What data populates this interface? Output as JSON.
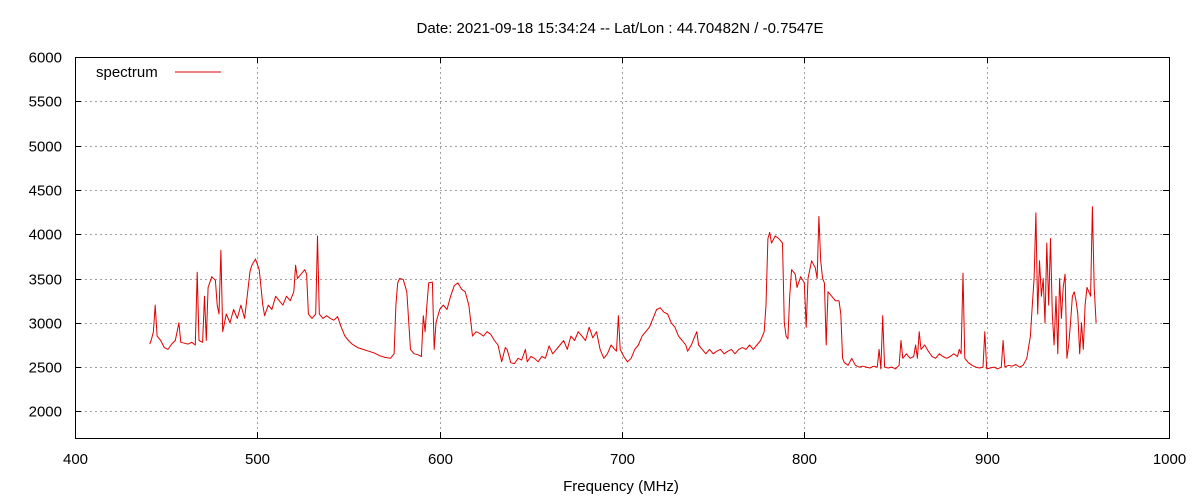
{
  "chart_data": {
    "type": "line",
    "title": "Date: 2021-09-18 15:34:24  --  Lat/Lon : 44.70482N / -0.7547E",
    "xlabel": "Frequency (MHz)",
    "ylabel": "",
    "xlim": [
      400,
      1000
    ],
    "ylim": [
      1700,
      6000
    ],
    "x_ticks": [
      400,
      500,
      600,
      700,
      800,
      900,
      1000
    ],
    "y_ticks": [
      2000,
      2500,
      3000,
      3500,
      4000,
      4500,
      5000,
      5500,
      6000
    ],
    "grid": true,
    "legend_position": "top-left",
    "series": [
      {
        "name": "spectrum",
        "color": "#e00000",
        "points": [
          [
            441,
            2760
          ],
          [
            442,
            2820
          ],
          [
            443,
            2900
          ],
          [
            444,
            3200
          ],
          [
            445,
            2850
          ],
          [
            447,
            2800
          ],
          [
            449,
            2720
          ],
          [
            451,
            2700
          ],
          [
            453,
            2760
          ],
          [
            455,
            2800
          ],
          [
            457,
            3000
          ],
          [
            458,
            2780
          ],
          [
            460,
            2770
          ],
          [
            462,
            2760
          ],
          [
            464,
            2780
          ],
          [
            466,
            2750
          ],
          [
            467,
            3570
          ],
          [
            468,
            2800
          ],
          [
            470,
            2780
          ],
          [
            471,
            3300
          ],
          [
            472,
            2800
          ],
          [
            473,
            3400
          ],
          [
            475,
            3520
          ],
          [
            477,
            3480
          ],
          [
            478,
            3200
          ],
          [
            479,
            3100
          ],
          [
            480,
            3820
          ],
          [
            481,
            2900
          ],
          [
            483,
            3100
          ],
          [
            485,
            3000
          ],
          [
            487,
            3150
          ],
          [
            489,
            3050
          ],
          [
            491,
            3200
          ],
          [
            493,
            3050
          ],
          [
            495,
            3400
          ],
          [
            496,
            3580
          ],
          [
            497,
            3650
          ],
          [
            499,
            3720
          ],
          [
            501,
            3600
          ],
          [
            503,
            3200
          ],
          [
            504,
            3080
          ],
          [
            506,
            3200
          ],
          [
            508,
            3150
          ],
          [
            510,
            3300
          ],
          [
            512,
            3250
          ],
          [
            514,
            3200
          ],
          [
            516,
            3300
          ],
          [
            518,
            3250
          ],
          [
            520,
            3350
          ],
          [
            521,
            3650
          ],
          [
            522,
            3500
          ],
          [
            524,
            3550
          ],
          [
            526,
            3600
          ],
          [
            527,
            3550
          ],
          [
            528,
            3100
          ],
          [
            530,
            3050
          ],
          [
            532,
            3100
          ],
          [
            533,
            3980
          ],
          [
            534,
            3100
          ],
          [
            536,
            3050
          ],
          [
            538,
            3080
          ],
          [
            540,
            3050
          ],
          [
            542,
            3030
          ],
          [
            544,
            3070
          ],
          [
            546,
            2950
          ],
          [
            548,
            2850
          ],
          [
            550,
            2800
          ],
          [
            552,
            2760
          ],
          [
            555,
            2720
          ],
          [
            558,
            2700
          ],
          [
            561,
            2680
          ],
          [
            564,
            2660
          ],
          [
            567,
            2630
          ],
          [
            570,
            2610
          ],
          [
            573,
            2600
          ],
          [
            575,
            2650
          ],
          [
            576,
            3200
          ],
          [
            577,
            3450
          ],
          [
            578,
            3500
          ],
          [
            580,
            3490
          ],
          [
            582,
            3350
          ],
          [
            584,
            2700
          ],
          [
            586,
            2650
          ],
          [
            588,
            2640
          ],
          [
            590,
            2620
          ],
          [
            591,
            3080
          ],
          [
            592,
            2900
          ],
          [
            593,
            3200
          ],
          [
            594,
            3450
          ],
          [
            596,
            3460
          ],
          [
            597,
            2700
          ],
          [
            598,
            3000
          ],
          [
            600,
            3150
          ],
          [
            602,
            3200
          ],
          [
            604,
            3150
          ],
          [
            606,
            3300
          ],
          [
            608,
            3420
          ],
          [
            610,
            3450
          ],
          [
            612,
            3380
          ],
          [
            614,
            3350
          ],
          [
            616,
            3200
          ],
          [
            617,
            3020
          ],
          [
            618,
            2850
          ],
          [
            620,
            2900
          ],
          [
            622,
            2880
          ],
          [
            624,
            2850
          ],
          [
            626,
            2900
          ],
          [
            628,
            2870
          ],
          [
            630,
            2800
          ],
          [
            632,
            2750
          ],
          [
            634,
            2560
          ],
          [
            636,
            2720
          ],
          [
            637,
            2700
          ],
          [
            639,
            2550
          ],
          [
            641,
            2540
          ],
          [
            643,
            2600
          ],
          [
            645,
            2580
          ],
          [
            647,
            2700
          ],
          [
            648,
            2560
          ],
          [
            650,
            2620
          ],
          [
            652,
            2600
          ],
          [
            654,
            2560
          ],
          [
            656,
            2620
          ],
          [
            658,
            2600
          ],
          [
            660,
            2740
          ],
          [
            662,
            2650
          ],
          [
            664,
            2700
          ],
          [
            666,
            2750
          ],
          [
            668,
            2800
          ],
          [
            670,
            2700
          ],
          [
            672,
            2850
          ],
          [
            674,
            2800
          ],
          [
            676,
            2900
          ],
          [
            678,
            2850
          ],
          [
            680,
            2800
          ],
          [
            682,
            2950
          ],
          [
            684,
            2830
          ],
          [
            686,
            2900
          ],
          [
            688,
            2700
          ],
          [
            690,
            2600
          ],
          [
            692,
            2650
          ],
          [
            694,
            2750
          ],
          [
            696,
            2700
          ],
          [
            697,
            2680
          ],
          [
            698,
            3080
          ],
          [
            699,
            2700
          ],
          [
            701,
            2620
          ],
          [
            703,
            2560
          ],
          [
            705,
            2600
          ],
          [
            707,
            2700
          ],
          [
            709,
            2750
          ],
          [
            711,
            2850
          ],
          [
            713,
            2900
          ],
          [
            715,
            2950
          ],
          [
            717,
            3050
          ],
          [
            719,
            3150
          ],
          [
            721,
            3170
          ],
          [
            723,
            3120
          ],
          [
            725,
            3100
          ],
          [
            727,
            3000
          ],
          [
            729,
            2950
          ],
          [
            731,
            2850
          ],
          [
            733,
            2800
          ],
          [
            735,
            2750
          ],
          [
            736,
            2680
          ],
          [
            738,
            2750
          ],
          [
            740,
            2850
          ],
          [
            741,
            2900
          ],
          [
            742,
            2750
          ],
          [
            744,
            2700
          ],
          [
            746,
            2650
          ],
          [
            748,
            2700
          ],
          [
            750,
            2650
          ],
          [
            752,
            2680
          ],
          [
            754,
            2700
          ],
          [
            756,
            2650
          ],
          [
            758,
            2680
          ],
          [
            760,
            2700
          ],
          [
            762,
            2650
          ],
          [
            764,
            2700
          ],
          [
            766,
            2720
          ],
          [
            768,
            2700
          ],
          [
            770,
            2750
          ],
          [
            772,
            2700
          ],
          [
            774,
            2750
          ],
          [
            776,
            2800
          ],
          [
            778,
            2900
          ],
          [
            779,
            3200
          ],
          [
            780,
            3950
          ],
          [
            781,
            4020
          ],
          [
            782,
            3900
          ],
          [
            784,
            3980
          ],
          [
            786,
            3950
          ],
          [
            788,
            3900
          ],
          [
            789,
            3000
          ],
          [
            790,
            2850
          ],
          [
            791,
            2820
          ],
          [
            792,
            3300
          ],
          [
            793,
            3600
          ],
          [
            795,
            3550
          ],
          [
            796,
            3400
          ],
          [
            798,
            3520
          ],
          [
            800,
            3450
          ],
          [
            801,
            2950
          ],
          [
            802,
            3500
          ],
          [
            804,
            3700
          ],
          [
            806,
            3620
          ],
          [
            807,
            3500
          ],
          [
            808,
            4200
          ],
          [
            809,
            3700
          ],
          [
            810,
            3500
          ],
          [
            811,
            3450
          ],
          [
            812,
            2750
          ],
          [
            813,
            3350
          ],
          [
            815,
            3300
          ],
          [
            817,
            3250
          ],
          [
            819,
            3250
          ],
          [
            820,
            3100
          ],
          [
            821,
            2600
          ],
          [
            822,
            2550
          ],
          [
            824,
            2520
          ],
          [
            826,
            2600
          ],
          [
            828,
            2520
          ],
          [
            830,
            2500
          ],
          [
            832,
            2510
          ],
          [
            834,
            2500
          ],
          [
            836,
            2490
          ],
          [
            838,
            2510
          ],
          [
            840,
            2500
          ],
          [
            841,
            2700
          ],
          [
            842,
            2480
          ],
          [
            843,
            3080
          ],
          [
            844,
            2500
          ],
          [
            846,
            2490
          ],
          [
            848,
            2500
          ],
          [
            850,
            2480
          ],
          [
            852,
            2520
          ],
          [
            853,
            2800
          ],
          [
            854,
            2600
          ],
          [
            856,
            2650
          ],
          [
            858,
            2600
          ],
          [
            860,
            2620
          ],
          [
            861,
            2750
          ],
          [
            862,
            2600
          ],
          [
            863,
            2900
          ],
          [
            864,
            2700
          ],
          [
            866,
            2750
          ],
          [
            868,
            2680
          ],
          [
            870,
            2620
          ],
          [
            872,
            2600
          ],
          [
            874,
            2650
          ],
          [
            876,
            2620
          ],
          [
            878,
            2600
          ],
          [
            880,
            2620
          ],
          [
            882,
            2650
          ],
          [
            884,
            2620
          ],
          [
            885,
            2700
          ],
          [
            886,
            2650
          ],
          [
            887,
            3560
          ],
          [
            888,
            2600
          ],
          [
            890,
            2550
          ],
          [
            892,
            2520
          ],
          [
            894,
            2500
          ],
          [
            896,
            2490
          ],
          [
            898,
            2500
          ],
          [
            899,
            2900
          ],
          [
            900,
            2480
          ],
          [
            902,
            2490
          ],
          [
            904,
            2500
          ],
          [
            906,
            2480
          ],
          [
            908,
            2500
          ],
          [
            909,
            2800
          ],
          [
            910,
            2500
          ],
          [
            912,
            2520
          ],
          [
            914,
            2510
          ],
          [
            916,
            2530
          ],
          [
            918,
            2500
          ],
          [
            920,
            2520
          ],
          [
            922,
            2600
          ],
          [
            924,
            2850
          ],
          [
            925,
            3200
          ],
          [
            926,
            3500
          ],
          [
            927,
            4240
          ],
          [
            928,
            3100
          ],
          [
            929,
            3700
          ],
          [
            930,
            3300
          ],
          [
            931,
            3500
          ],
          [
            932,
            3000
          ],
          [
            933,
            3900
          ],
          [
            934,
            3200
          ],
          [
            935,
            3950
          ],
          [
            936,
            3100
          ],
          [
            937,
            2750
          ],
          [
            938,
            3300
          ],
          [
            939,
            2650
          ],
          [
            940,
            3500
          ],
          [
            941,
            3050
          ],
          [
            942,
            3400
          ],
          [
            943,
            3550
          ],
          [
            944,
            2600
          ],
          [
            945,
            2750
          ],
          [
            946,
            3000
          ],
          [
            947,
            3300
          ],
          [
            948,
            3350
          ],
          [
            949,
            3250
          ],
          [
            950,
            3100
          ],
          [
            951,
            2650
          ],
          [
            952,
            3000
          ],
          [
            953,
            2700
          ],
          [
            954,
            3200
          ],
          [
            955,
            3400
          ],
          [
            956,
            3350
          ],
          [
            957,
            3300
          ],
          [
            958,
            4310
          ],
          [
            959,
            3400
          ],
          [
            960,
            3000
          ]
        ]
      }
    ]
  }
}
